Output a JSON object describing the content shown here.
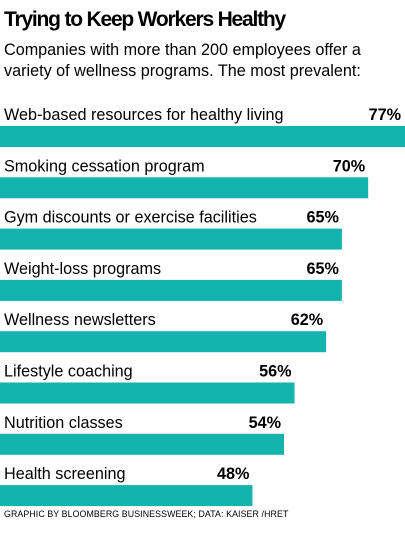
{
  "header": {
    "title": "Trying to Keep Workers Healthy",
    "subtitle": "Companies with more than 200 employees offer a variety of wellness programs. The most prevalent:"
  },
  "footer": {
    "credit": "GRAPHIC BY BLOOMBERG BUSINESSWEEK; DATA: KAISER /HRET"
  },
  "colors": {
    "bar": "#14b3ad",
    "text": "#000000"
  },
  "chart_data": {
    "type": "bar",
    "orientation": "horizontal",
    "categories": [
      "Web-based resources for healthy living",
      "Smoking cessation program",
      "Gym discounts or exercise facilities",
      "Weight-loss programs",
      "Wellness newsletters",
      "Lifestyle coaching",
      "Nutrition classes",
      "Health screening"
    ],
    "values": [
      77,
      70,
      65,
      65,
      62,
      56,
      54,
      48
    ],
    "value_labels": [
      "77%",
      "70%",
      "65%",
      "65%",
      "62%",
      "56%",
      "54%",
      "48%"
    ],
    "unit": "%",
    "xlim": [
      0,
      77
    ],
    "grid": false,
    "legend": "none"
  }
}
